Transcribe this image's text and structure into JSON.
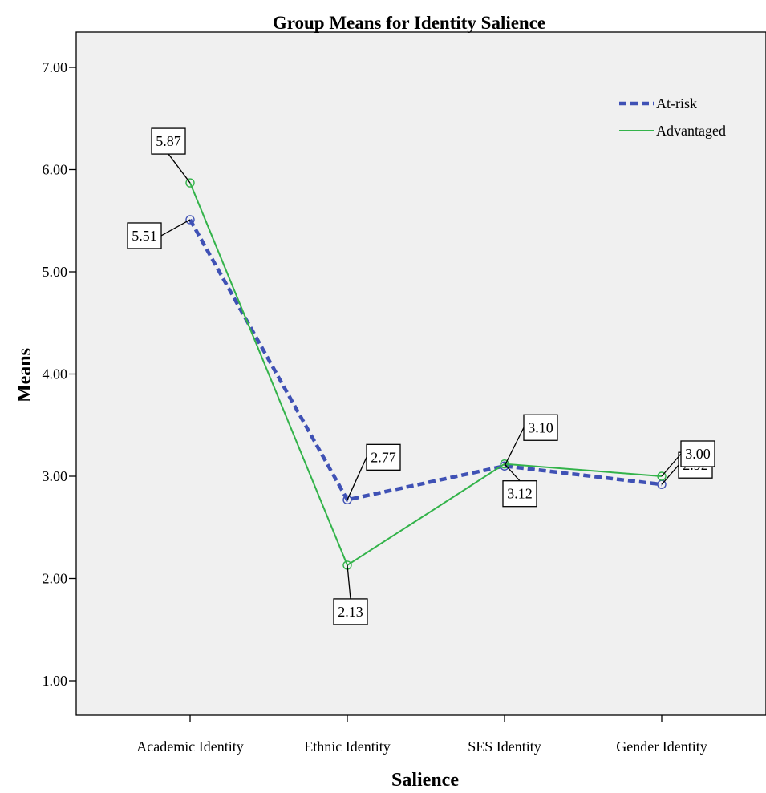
{
  "chart_data": {
    "type": "line",
    "title": "Group Means for Identity Salience",
    "xlabel": "Salience",
    "ylabel": "Means",
    "categories": [
      "Academic Identity",
      "Ethnic Identity",
      "SES Identity",
      "Gender Identity"
    ],
    "ylim": [
      0.55,
      7.95
    ],
    "yticks": [
      1.0,
      2.0,
      3.0,
      4.0,
      5.0,
      6.0,
      7.0
    ],
    "ytick_labels": [
      "1.00",
      "2.00",
      "3.00",
      "4.00",
      "5.00",
      "6.00",
      "7.00"
    ],
    "grid": false,
    "legend_position": "top-right",
    "series": [
      {
        "name": "At-risk",
        "values": [
          5.51,
          2.77,
          3.1,
          2.92
        ],
        "labels": [
          "5.51",
          "2.77",
          "3.10",
          "2.92"
        ],
        "color": "#3F51B5",
        "line_style": "dashed"
      },
      {
        "name": "Advantaged",
        "values": [
          5.87,
          2.13,
          3.12,
          3.0
        ],
        "labels": [
          "5.87",
          "2.13",
          "3.12",
          "3.00"
        ],
        "color": "#33B34A",
        "line_style": "solid"
      }
    ],
    "plot_background": "#F0F0F0"
  }
}
